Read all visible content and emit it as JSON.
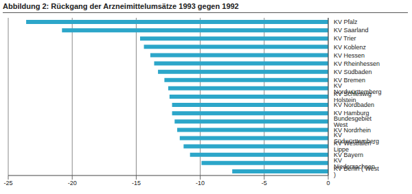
{
  "chart_data": {
    "type": "bar",
    "title": "Abbildung 2: Rückgang der Arzneimittelumsätze 1993 gegen 1992",
    "categories": [
      "KV Pfalz",
      "KV Saarland",
      "KV Trier",
      "KV Koblenz",
      "KV Hessen",
      "KV Rheinhessen",
      "KV Südbaden",
      "KV Bremen",
      "KV Nordwürttemberg",
      "KV Schleswig Holstein",
      "KV Nordbaden",
      "KV Hamburg",
      "Bundesgebiet West",
      "KV Nordrhein",
      "KV Südwürttemberg",
      "KV Westfalen - Lippe",
      "KV Bayern",
      "KV Niedersachsen",
      "KV Berlin ( West )"
    ],
    "values": [
      -23.6,
      -20.8,
      -14.7,
      -14.4,
      -13.9,
      -13.6,
      -13.3,
      -12.8,
      -12.5,
      -12.4,
      -12.2,
      -12.2,
      -12.0,
      -11.8,
      -11.6,
      -11.3,
      -10.8,
      -9.9,
      -7.5
    ],
    "color": "#2ca6c9",
    "orientation": "horizontal",
    "xlim": [
      -25,
      0
    ],
    "xticks": [
      -25,
      -20,
      -15,
      -10,
      -5,
      0
    ],
    "grid": true
  }
}
